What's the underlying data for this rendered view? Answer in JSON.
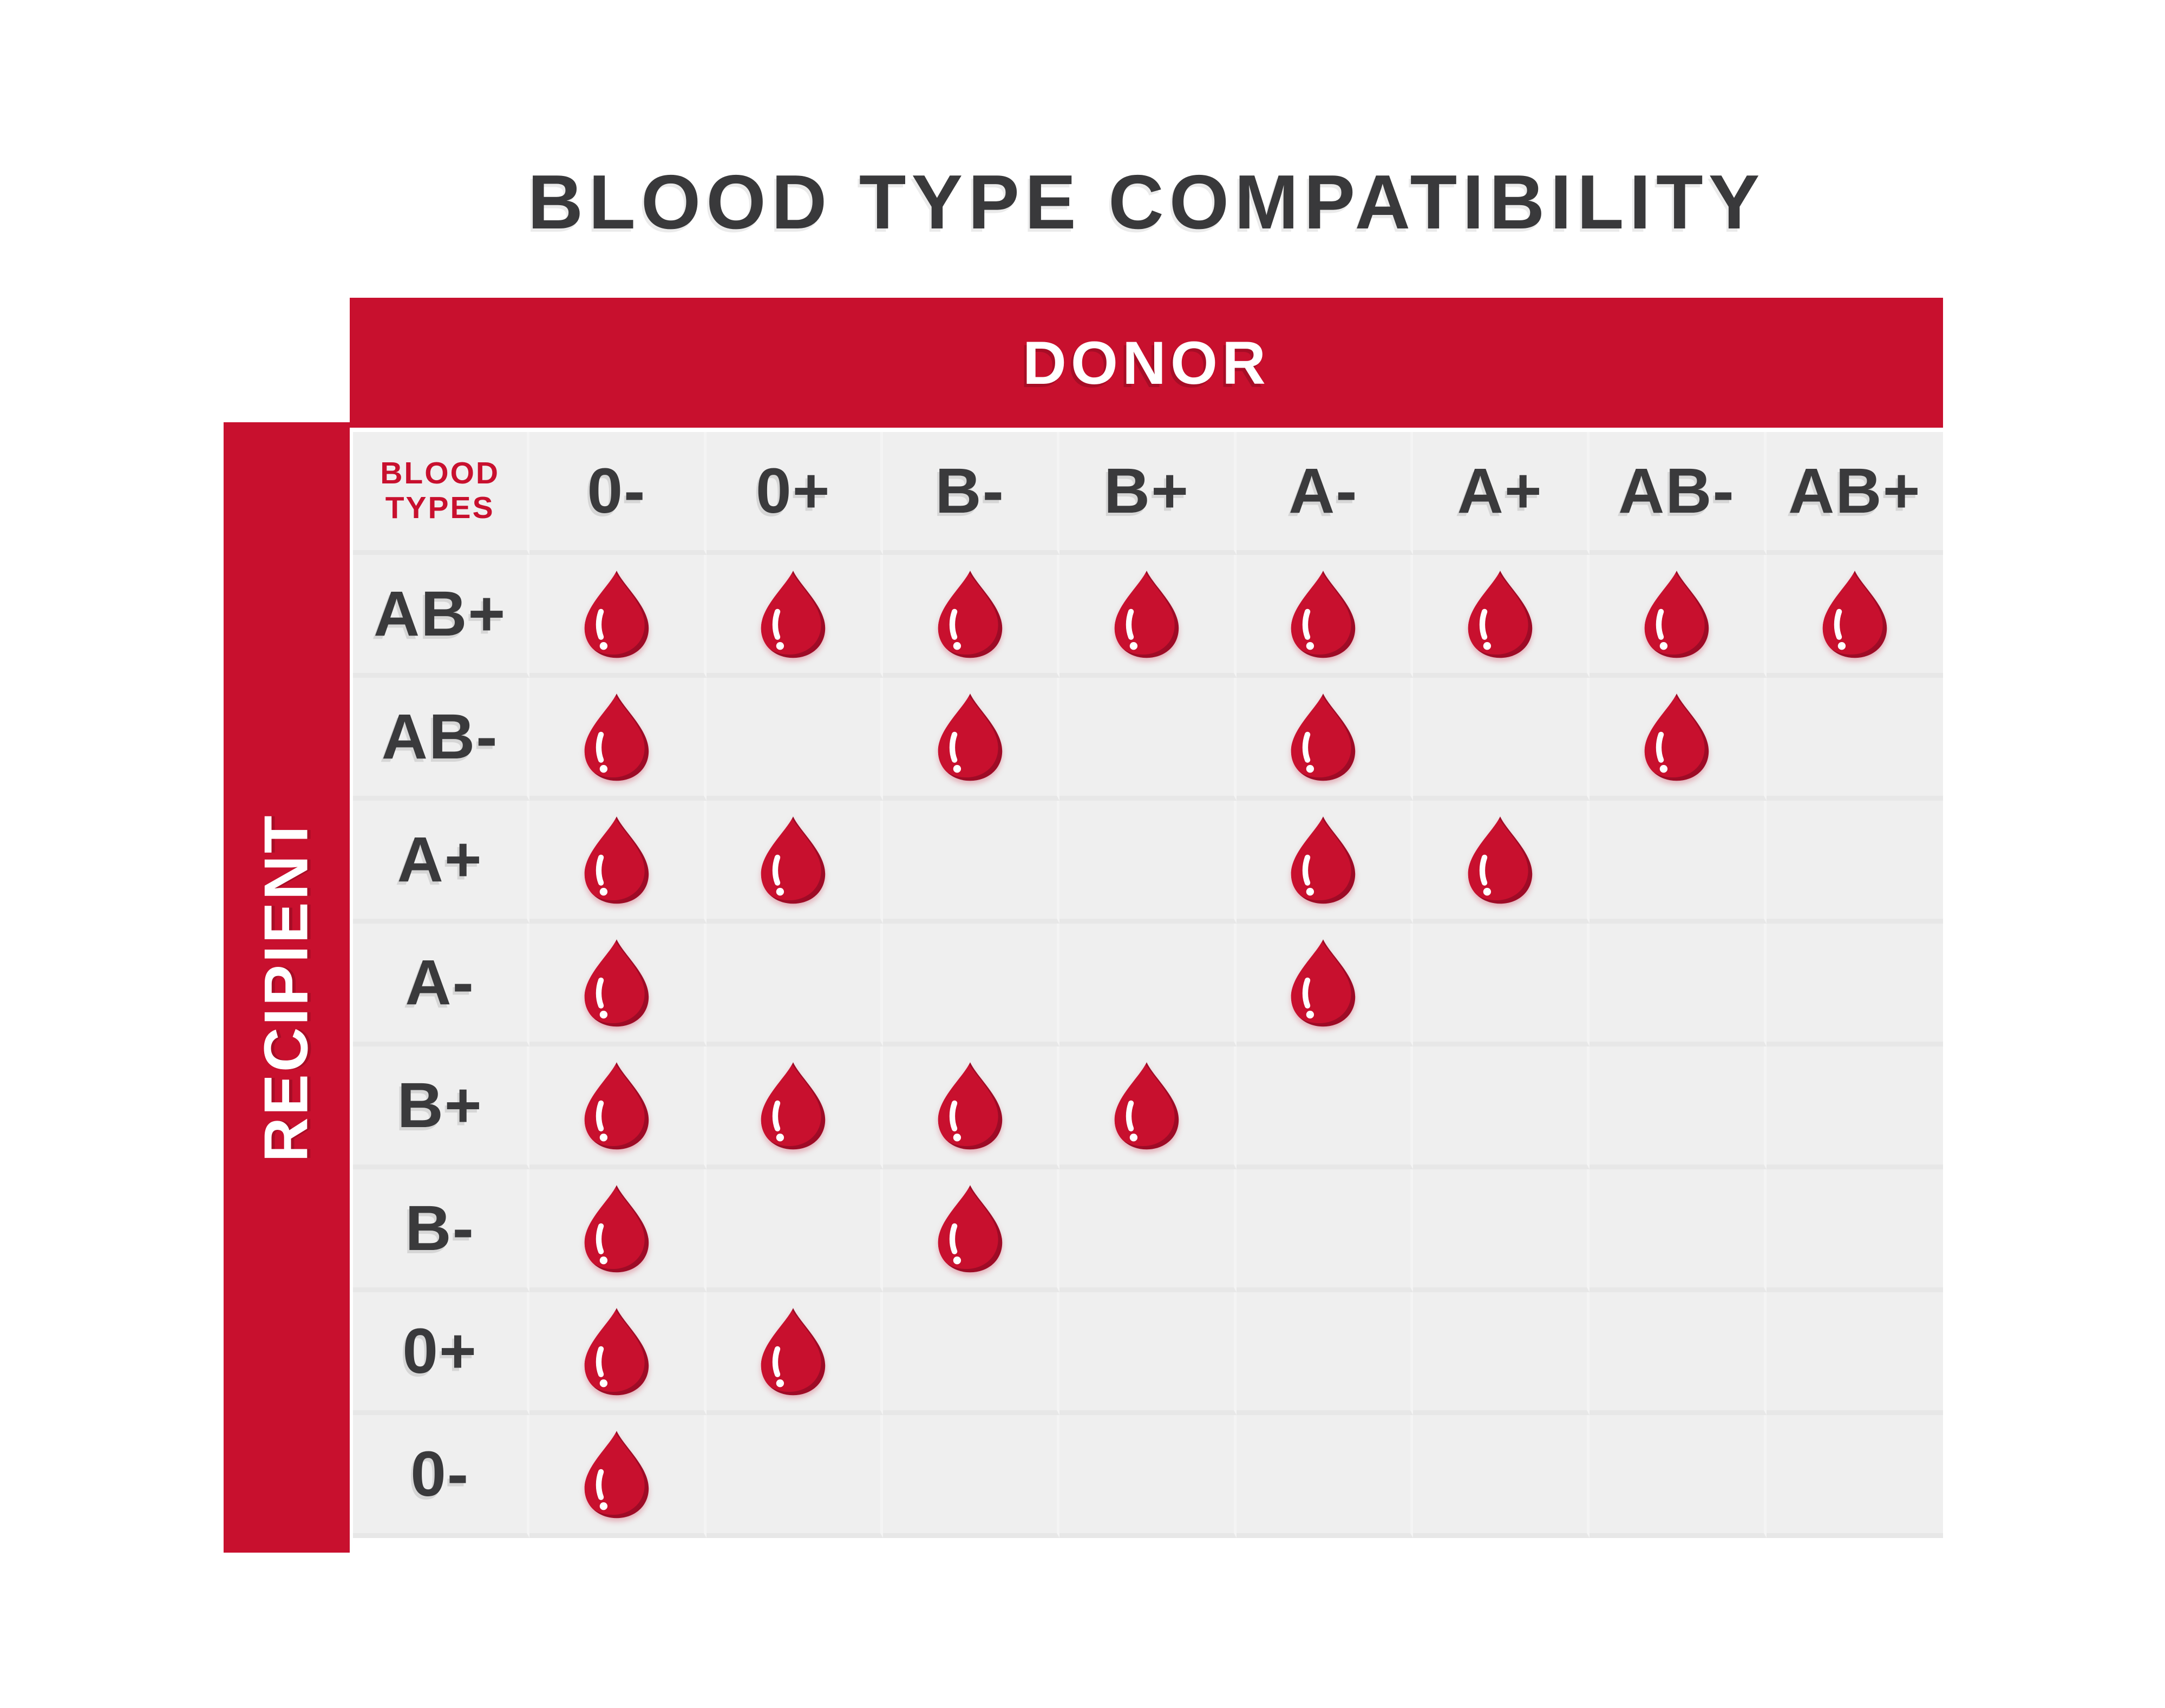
{
  "title": "BLOOD TYPE COMPATIBILITY",
  "donor_label": "DONOR",
  "recipient_label": "RECIPIENT",
  "corner_lines": [
    "BLOOD",
    "TYPES"
  ],
  "colors": {
    "red": "#c8102e",
    "red_dark": "#9e0b26",
    "text_dark": "#3a3a3c",
    "cell_bg": "#efefef",
    "grid_line": "#e7e7e7",
    "white": "#ffffff"
  },
  "marker_icon": "blood-drop-icon",
  "chart_data": {
    "type": "table",
    "title": "BLOOD TYPE COMPATIBILITY",
    "x_header": "DONOR",
    "y_header": "RECIPIENT",
    "corner_header": "BLOOD TYPES",
    "columns": [
      "0-",
      "0+",
      "B-",
      "B+",
      "A-",
      "A+",
      "AB-",
      "AB+"
    ],
    "rows": [
      "AB+",
      "AB-",
      "A+",
      "A-",
      "B+",
      "B-",
      "0+",
      "0-"
    ],
    "cell_marker": "blood-drop",
    "compatible": {
      "AB+": [
        "0-",
        "0+",
        "B-",
        "B+",
        "A-",
        "A+",
        "AB-",
        "AB+"
      ],
      "AB-": [
        "0-",
        "B-",
        "A-",
        "AB-"
      ],
      "A+": [
        "0-",
        "0+",
        "A-",
        "A+"
      ],
      "A-": [
        "0-",
        "A-"
      ],
      "B+": [
        "0-",
        "0+",
        "B-",
        "B+"
      ],
      "B-": [
        "0-",
        "B-"
      ],
      "0+": [
        "0-",
        "0+"
      ],
      "0-": [
        "0-"
      ]
    }
  }
}
